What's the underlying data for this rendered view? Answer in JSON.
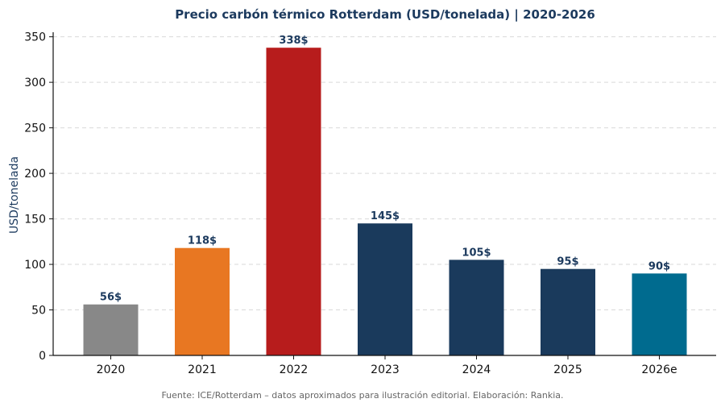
{
  "chart_data": {
    "type": "bar",
    "title": "Precio carbón térmico Rotterdam (USD/tonelada) | 2020-2026",
    "xlabel": "",
    "ylabel": "USD/tonelada",
    "categories": [
      "2020",
      "2021",
      "2022",
      "2023",
      "2024",
      "2025",
      "2026e"
    ],
    "values": [
      56,
      118,
      338,
      145,
      105,
      95,
      90
    ],
    "data_labels": [
      "56$",
      "118$",
      "338$",
      "145$",
      "105$",
      "95$",
      "90$"
    ],
    "bar_colors": [
      "#888888",
      "#e87722",
      "#b71c1c",
      "#1a3a5c",
      "#1a3a5c",
      "#1a3a5c",
      "#006b8f"
    ],
    "ylim": [
      0,
      355
    ],
    "yticks": [
      0,
      50,
      100,
      150,
      200,
      250,
      300,
      350
    ],
    "grid": true,
    "legend": "none"
  },
  "footer": {
    "source": "Fuente: ICE/Rotterdam – datos aproximados para ilustración editorial. Elaboración: Rankia."
  }
}
